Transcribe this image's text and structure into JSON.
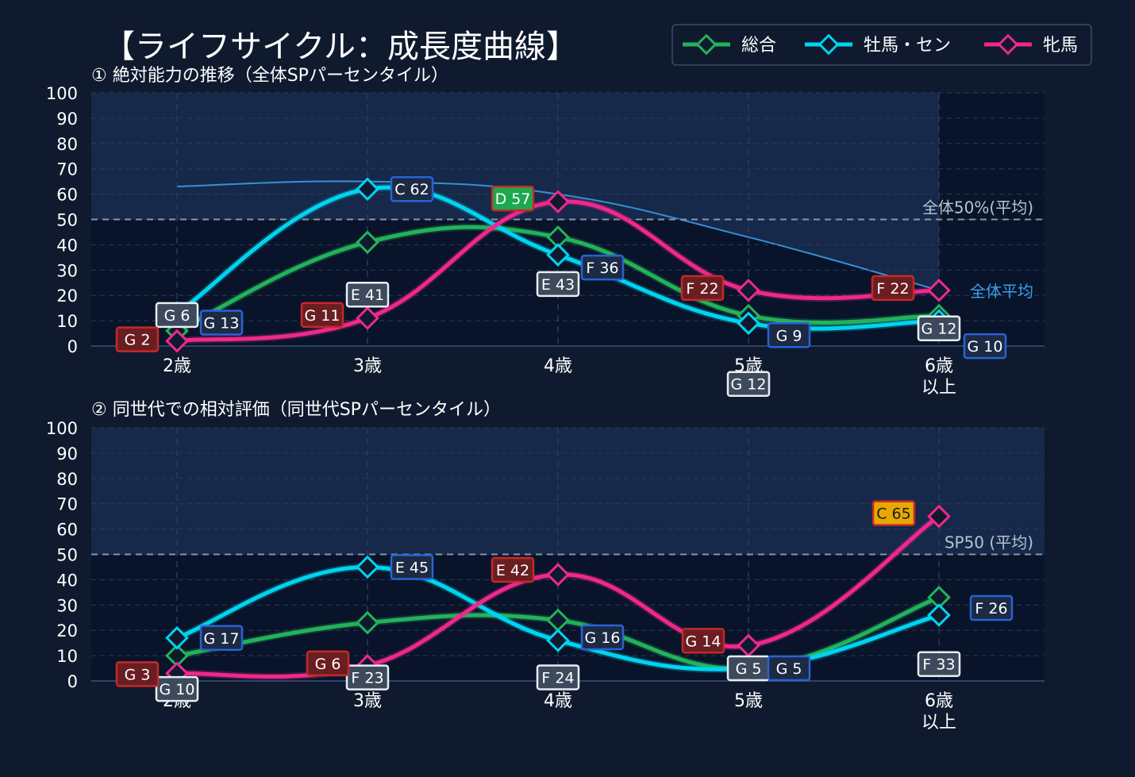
{
  "title": "【ライフサイクル：成長度曲線】",
  "legend": [
    {
      "label": "総合",
      "color": "#22b35a"
    },
    {
      "label": "牡馬・セン",
      "color": "#00d4f0"
    },
    {
      "label": "牝馬",
      "color": "#f0288c"
    }
  ],
  "colors": {
    "background": "#0f1a2e",
    "plot_bg": "#09142a",
    "plot_band": "#16294a",
    "grade_G": "#c62828",
    "grade_F": "#c62828",
    "grade_E": "#c62828",
    "grade_D": "#1ea84f",
    "grade_C": "#e6a800",
    "label_blue": "#2a62d6",
    "label_white": "#e8edf3",
    "env": "#3590d6"
  },
  "chart_data": [
    {
      "type": "line",
      "subtitle": "① 絶対能力の推移（全体SPパーセンタイル）",
      "categories": [
        "2歳",
        "3歳",
        "4歳",
        "5歳",
        "6歳\n以上"
      ],
      "ylim": [
        0,
        100
      ],
      "yticks": [
        0,
        10,
        20,
        30,
        40,
        50,
        60,
        70,
        80,
        90,
        100
      ],
      "grid": true,
      "reference_line": {
        "value": 50,
        "label": "全体50%(平均)"
      },
      "envelope": {
        "label": "全体平均",
        "values": [
          63,
          65,
          60,
          43,
          22
        ]
      },
      "series": [
        {
          "name": "総合",
          "values": [
            6,
            41,
            43,
            12,
            12
          ],
          "labels": [
            "G 6",
            "E 41",
            "E 43",
            "G 12",
            "G 12"
          ]
        },
        {
          "name": "牡馬・セン",
          "values": [
            13,
            62,
            36,
            9,
            10
          ],
          "labels": [
            "G 13",
            "C 62",
            "F 36",
            "G 9",
            "G 10"
          ]
        },
        {
          "name": "牝馬",
          "values": [
            2,
            11,
            57,
            22,
            22
          ],
          "labels": [
            "G 2",
            "G 11",
            "D 57",
            "F 22",
            "F 22"
          ]
        }
      ]
    },
    {
      "type": "line",
      "subtitle": "② 同世代での相対評価（同世代SPパーセンタイル）",
      "categories": [
        "2歳",
        "3歳",
        "4歳",
        "5歳",
        "6歳\n以上"
      ],
      "ylim": [
        0,
        100
      ],
      "yticks": [
        0,
        10,
        20,
        30,
        40,
        50,
        60,
        70,
        80,
        90,
        100
      ],
      "grid": true,
      "reference_line": {
        "value": 50,
        "label": "SP50 (平均)"
      },
      "series": [
        {
          "name": "総合",
          "values": [
            10,
            23,
            24,
            5,
            33
          ],
          "labels": [
            "G 10",
            "F 23",
            "F 24",
            "G 5",
            "F 33"
          ]
        },
        {
          "name": "牡馬・セン",
          "values": [
            17,
            45,
            16,
            5,
            26
          ],
          "labels": [
            "G 17",
            "E 45",
            "G 16",
            "G 5",
            "F 26"
          ]
        },
        {
          "name": "牝馬",
          "values": [
            3,
            6,
            42,
            14,
            65
          ],
          "labels": [
            "G 3",
            "G 6",
            "E 42",
            "G 14",
            "C 65"
          ]
        }
      ]
    }
  ]
}
